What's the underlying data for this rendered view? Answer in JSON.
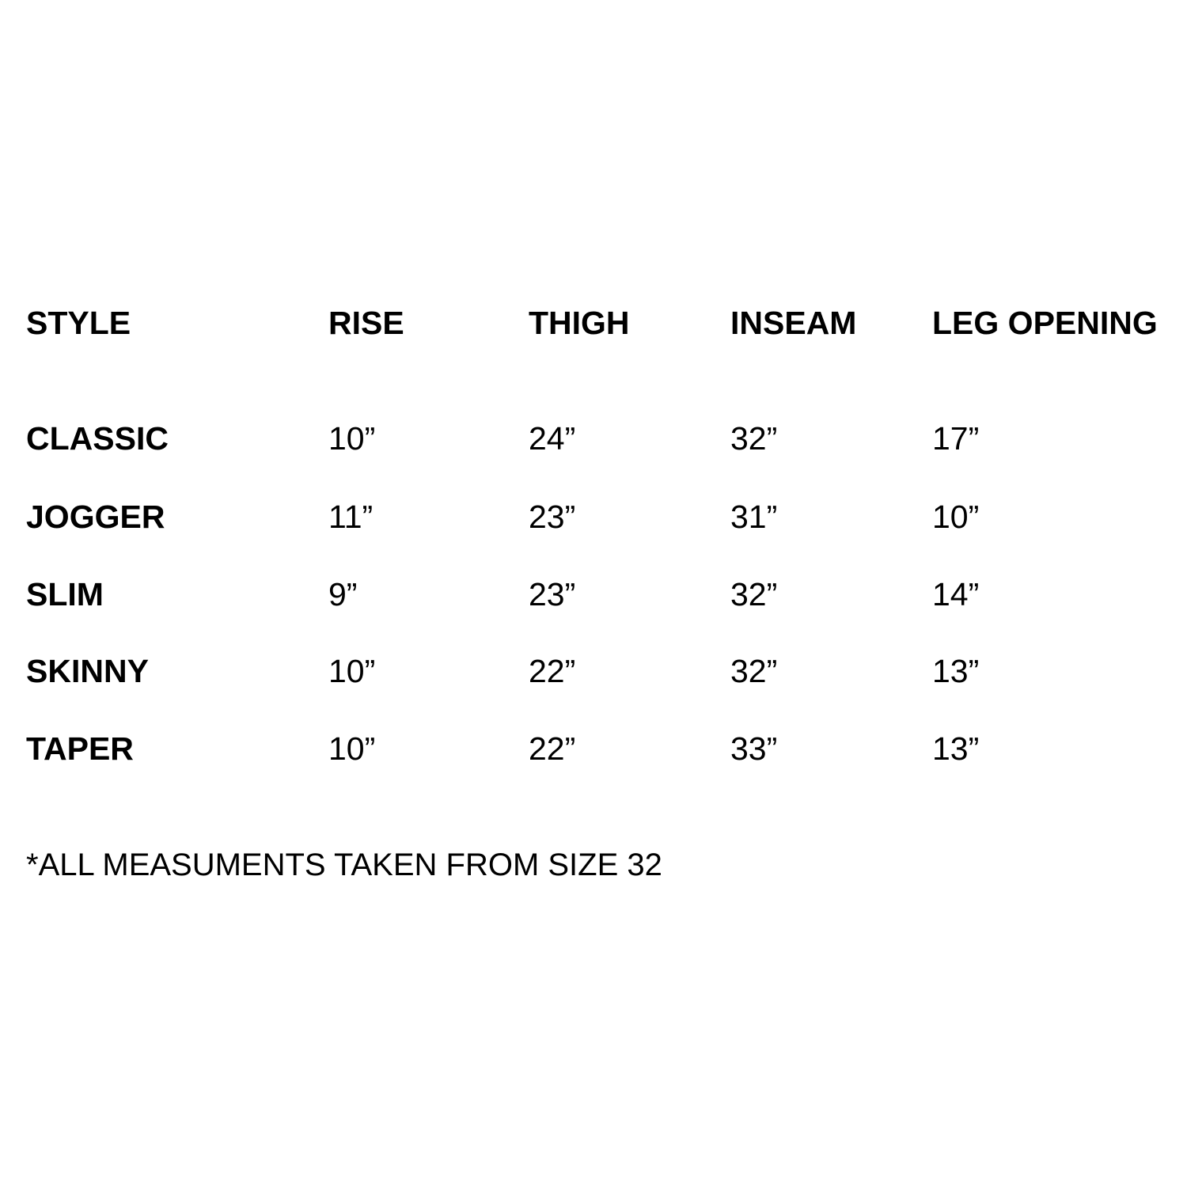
{
  "table": {
    "headers": [
      "STYLE",
      "RISE",
      "THIGH",
      "INSEAM",
      "LEG OPENING"
    ],
    "rows": [
      [
        "CLASSIC",
        "10”",
        "24”",
        "32”",
        "17”"
      ],
      [
        "JOGGER",
        "11”",
        "23”",
        "31”",
        "10”"
      ],
      [
        "SLIM",
        "9”",
        "23”",
        "32”",
        "14”"
      ],
      [
        "SKINNY",
        "10”",
        "22”",
        "32”",
        "13”"
      ],
      [
        "TAPER",
        "10”",
        "22”",
        "33”",
        "13”"
      ]
    ]
  },
  "footnote": "*ALL MEASUMENTS TAKEN FROM SIZE 32"
}
